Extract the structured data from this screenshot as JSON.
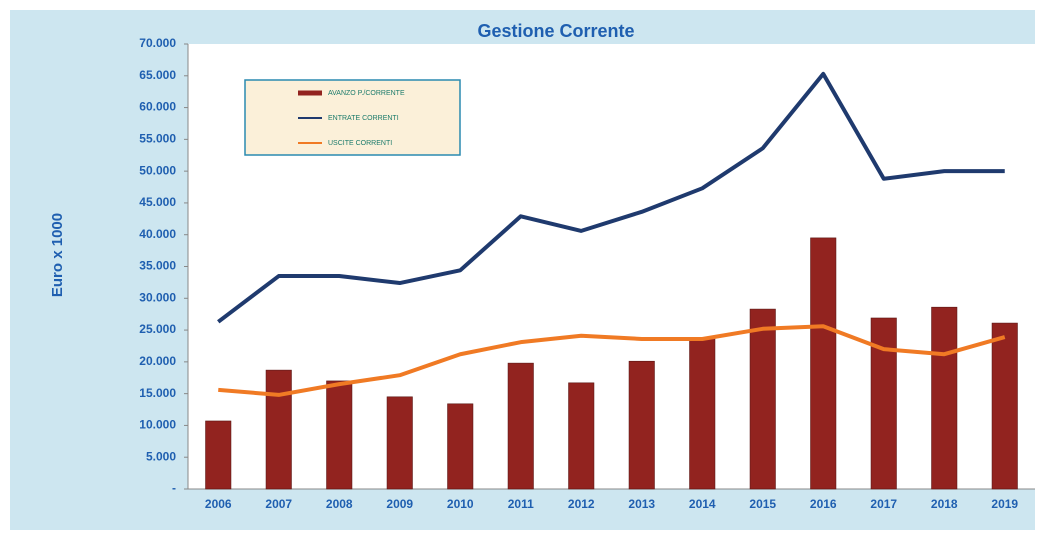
{
  "chart_data": {
    "type": "bar",
    "title": "Gestione Corrente",
    "y_label": "Euro x 1000",
    "categories": [
      "2006",
      "2007",
      "2008",
      "2009",
      "2010",
      "2011",
      "2012",
      "2013",
      "2014",
      "2015",
      "2016",
      "2017",
      "2018",
      "2019"
    ],
    "series": [
      {
        "name": "AVANZO P./CORRENTE",
        "type": "bar",
        "color": "#92231f",
        "values": [
          10700,
          18700,
          17000,
          14500,
          13400,
          19800,
          16700,
          20100,
          23800,
          28300,
          39500,
          26900,
          28600,
          26100
        ]
      },
      {
        "name": "ENTRATE CORRENTI",
        "type": "line",
        "color": "#1f3a6e",
        "values": [
          26300,
          33500,
          33500,
          32400,
          34400,
          42900,
          40600,
          43600,
          47300,
          53600,
          65300,
          48800,
          50000,
          50000
        ]
      },
      {
        "name": "USCITE CORRENTI",
        "type": "line",
        "color": "#f07a24",
        "values": [
          15600,
          14800,
          16500,
          17900,
          21200,
          23100,
          24100,
          23600,
          23600,
          25200,
          25600,
          22000,
          21200,
          23900
        ]
      }
    ],
    "ylim": [
      0,
      70000
    ],
    "yticks": [
      {
        "value": 0,
        "label": "-"
      },
      {
        "value": 5000,
        "label": "5.000"
      },
      {
        "value": 10000,
        "label": "10.000"
      },
      {
        "value": 15000,
        "label": "15.000"
      },
      {
        "value": 20000,
        "label": "20.000"
      },
      {
        "value": 25000,
        "label": "25.000"
      },
      {
        "value": 30000,
        "label": "30.000"
      },
      {
        "value": 35000,
        "label": "35.000"
      },
      {
        "value": 40000,
        "label": "40.000"
      },
      {
        "value": 45000,
        "label": "45.000"
      },
      {
        "value": 50000,
        "label": "50.000"
      },
      {
        "value": 55000,
        "label": "55.000"
      },
      {
        "value": 60000,
        "label": "60.000"
      },
      {
        "value": 65000,
        "label": "65.000"
      },
      {
        "value": 70000,
        "label": "70.000"
      }
    ],
    "grid": false,
    "legend": "upper left"
  }
}
